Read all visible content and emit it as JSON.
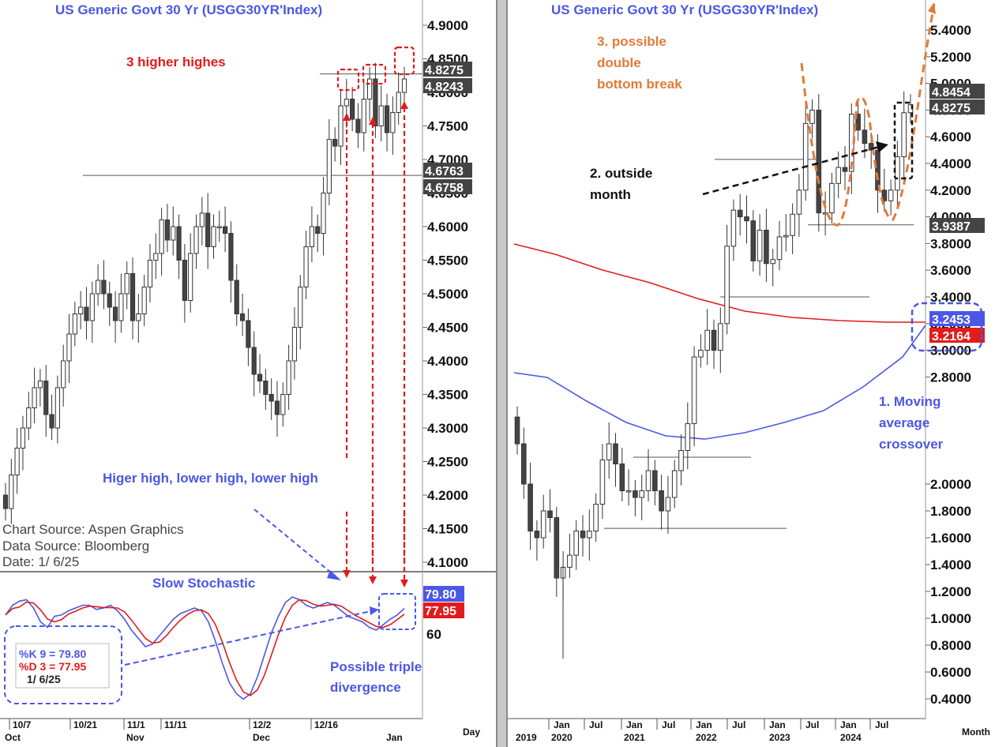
{
  "left": {
    "title": "US  Generic  Govt  30  Yr  (USGG30YR'Index)",
    "price_ticks": [
      "4.9000",
      "4.8500",
      "4.8000",
      "4.7500",
      "4.7000",
      "4.6500",
      "4.6000",
      "4.5500",
      "4.5000",
      "4.4500",
      "4.4000",
      "4.3500",
      "4.3000",
      "4.2500",
      "4.2000",
      "4.1500",
      "4.1000"
    ],
    "price_labels": [
      {
        "text": "4.8275",
        "color": "#444444",
        "y": 4.8275
      },
      {
        "text": "4.8243",
        "color": "#444444",
        "y": 4.8243
      },
      {
        "text": "4.6763",
        "color": "#444444",
        "y": 4.6763
      },
      {
        "text": "4.6758",
        "color": "#444444",
        "y": 4.6758
      }
    ],
    "annotation_higher_highs": "3 higher highes",
    "annotation_stoch": "Higer high, lower high, lower high",
    "source_lines": [
      "Chart  Source:  Aspen  Graphics",
      "Data  Source:  Bloomberg",
      "Date:     1/  6/25"
    ],
    "stoch_title": "Slow  Stochastic",
    "stoch_labels": [
      {
        "text": "79.80",
        "color": "#4b57e6"
      },
      {
        "text": "77.95",
        "color": "#e21b1b"
      }
    ],
    "stoch_tick": "60",
    "legend": [
      {
        "text": "%K  9  =  79.80",
        "color": "#4b57e6"
      },
      {
        "text": "%D  3  =  77.95",
        "color": "#e21b1b"
      },
      {
        "text": "1/  6/25",
        "color": "#222222"
      }
    ],
    "annotation_divergence": [
      "Possible triple",
      "divergence"
    ],
    "x_ticks_top": [
      "10/7",
      "10/21",
      "11/1",
      "11/11",
      "12/2",
      "12/16"
    ],
    "x_ticks_bottom": [
      "Oct",
      "Nov",
      "Dec",
      "Jan"
    ],
    "period": "Day",
    "colors": {
      "blue": "#4b57e6",
      "red": "#e21b1b",
      "orange": "#e07b39",
      "candle": "#333333"
    }
  },
  "right": {
    "title": "US  Generic  Govt  30  Yr  (USGG30YR'Index)",
    "price_ticks_upper": [
      "5.4000",
      "5.2000",
      "5.0000",
      "4.8000",
      "4.6000",
      "4.4000",
      "4.2000",
      "4.0000",
      "3.8000",
      "3.6000",
      "3.4000",
      "3.2000",
      "3.0000",
      "2.8000"
    ],
    "price_ticks_lower": [
      "2.0000",
      "1.8000",
      "1.6000",
      "1.4000",
      "1.2000",
      "1.0000",
      "0.8000",
      "0.6000",
      "0.4000"
    ],
    "price_labels": [
      {
        "text": "4.8454",
        "color": "#444444"
      },
      {
        "text": "4.8275",
        "color": "#444444"
      },
      {
        "text": "3.9387",
        "color": "#444444"
      },
      {
        "text": "3.2453",
        "color": "#4b57e6"
      },
      {
        "text": "3.2164",
        "color": "#e21b1b"
      }
    ],
    "annotation_double_bottom": [
      "3. possible",
      "double",
      "bottom break"
    ],
    "annotation_outside": [
      "2. outside",
      "month"
    ],
    "annotation_ma": [
      "1. Moving",
      "average",
      "crossover"
    ],
    "x_ticks_top": [
      "Jan",
      "Jul",
      "Jan",
      "Jul",
      "Jan",
      "Jul",
      "Jan",
      "Jul",
      "Jan",
      "Jul"
    ],
    "x_ticks_bottom": [
      "2019",
      "2020",
      "2021",
      "2022",
      "2023",
      "2024"
    ],
    "period": "Month"
  },
  "chart_data": [
    {
      "type": "candlestick",
      "title": "US  Generic  Govt  30  Yr  (USGG30YR'Index)",
      "frequency": "daily",
      "ylim": [
        4.08,
        4.92
      ],
      "x_ticks": [
        "10/7",
        "10/21",
        "11/1",
        "11/11",
        "12/2",
        "12/16"
      ],
      "ohlc_close_approx": [
        4.18,
        4.23,
        4.27,
        4.3,
        4.33,
        4.36,
        4.37,
        4.32,
        4.3,
        4.36,
        4.4,
        4.44,
        4.47,
        4.48,
        4.46,
        4.5,
        4.52,
        4.5,
        4.48,
        4.46,
        4.5,
        4.53,
        4.46,
        4.47,
        4.51,
        4.55,
        4.56,
        4.61,
        4.58,
        4.6,
        4.55,
        4.49,
        4.56,
        4.6,
        4.62,
        4.57,
        4.6,
        4.6,
        4.59,
        4.52,
        4.47,
        4.46,
        4.42,
        4.38,
        4.37,
        4.35,
        4.34,
        4.32,
        4.35,
        4.4,
        4.45,
        4.51,
        4.57,
        4.6,
        4.59,
        4.65,
        4.73,
        4.72,
        4.78,
        4.79,
        4.76,
        4.74,
        4.79,
        4.82,
        4.75,
        4.78,
        4.74,
        4.77,
        4.8,
        4.82
      ],
      "horizontal_lines": [
        4.6763,
        4.8275
      ],
      "last_values": [
        4.8275,
        4.8243
      ]
    },
    {
      "type": "line",
      "title": "Slow  Stochastic",
      "series": [
        {
          "name": "%K  9",
          "last": 79.8
        },
        {
          "name": "%D  3",
          "last": 77.95
        }
      ]
    },
    {
      "type": "candlestick",
      "title": "US  Generic  Govt  30  Yr  (USGG30YR'Index)",
      "frequency": "monthly",
      "ylim": [
        0.3,
        5.5
      ],
      "x_ticks": [
        "Jan 2020",
        "Jul",
        "Jan 2021",
        "Jul",
        "Jan 2022",
        "Jul",
        "Jan 2023",
        "Jul",
        "Jan 2024",
        "Jul"
      ],
      "close_approx": [
        2.3,
        2.0,
        1.65,
        1.6,
        1.8,
        1.75,
        1.3,
        1.38,
        1.47,
        1.65,
        1.6,
        1.65,
        1.85,
        2.18,
        2.3,
        2.15,
        1.95,
        1.95,
        1.9,
        1.95,
        2.1,
        1.95,
        1.8,
        1.9,
        2.1,
        2.25,
        2.45,
        2.95,
        3.0,
        3.15,
        3.0,
        3.2,
        3.78,
        4.05,
        4.0,
        3.97,
        3.67,
        3.9,
        3.65,
        3.68,
        3.85,
        3.86,
        4.02,
        4.2,
        4.7,
        4.8,
        4.03,
        4.03,
        4.25,
        4.37,
        4.34,
        4.77,
        4.65,
        4.55,
        4.5,
        4.2,
        4.12,
        4.2,
        4.45,
        4.78,
        4.84
      ],
      "series": [
        {
          "name": "moving average (red)",
          "last": 3.2164
        },
        {
          "name": "moving average (blue)",
          "last": 3.2453
        }
      ],
      "last_values": [
        4.8454,
        4.8275,
        3.9387
      ]
    }
  ]
}
